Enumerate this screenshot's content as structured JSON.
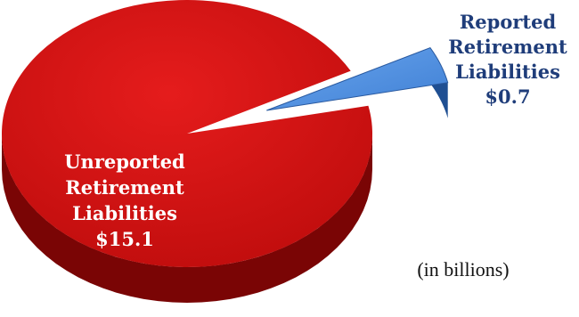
{
  "chart_data": {
    "type": "pie",
    "title": "",
    "unit_note": "(in billions)",
    "slices": [
      {
        "label_lines": [
          "Unreported",
          "Retirement",
          "Liabilities",
          "$15.1"
        ],
        "value": 15.1,
        "color": "#c00d0d",
        "shade_color": "#7a0505",
        "label_color": "#ffffff"
      },
      {
        "label_lines": [
          "Reported",
          "Retirement",
          "Liabilities",
          "$0.7"
        ],
        "value": 0.7,
        "color": "#3f7fd4",
        "shade_color": "#1f4f92",
        "label_color": "#1f3d7a",
        "exploded": true
      }
    ]
  }
}
